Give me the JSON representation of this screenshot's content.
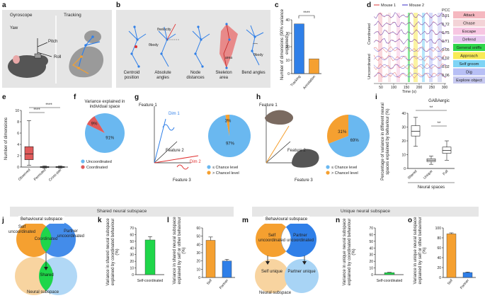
{
  "colors": {
    "blue": "#2f7fe8",
    "orange": "#f5a030",
    "red": "#e05a5a",
    "green": "#1fd64a",
    "lightblue": "#6ab8f0",
    "lightorange": "#f8d4a0",
    "grey": "#e5e5e5"
  },
  "panels": {
    "a": "a",
    "b": "b",
    "c": "c",
    "d": "d",
    "e": "e",
    "f": "f",
    "g": "g",
    "h": "h",
    "i": "i",
    "j": "j",
    "k": "k",
    "l": "l",
    "m": "m",
    "n": "n",
    "o": "o"
  },
  "a": {
    "title1": "Gyroscope",
    "title2": "Tracking",
    "yaw": "Yaw",
    "pitch": "Pitch",
    "roll": "Roll"
  },
  "b": {
    "labels": [
      "Centroid position",
      "Absolute angles",
      "Node distances",
      "Skeleton area",
      "Bend angles"
    ],
    "sym_body": "θbody",
    "sym_velocity": "θvelocity",
    "sym_area": "area",
    "sym_bend": "θbody"
  },
  "c": {
    "ylabel": "Number of dimensions (90% variance explained)",
    "sig": "****",
    "chart_data": {
      "type": "bar",
      "categories": [
        "Tracking",
        "Annotation"
      ],
      "values": [
        37,
        11
      ],
      "ylim": [
        0,
        40
      ],
      "yticks": [
        0,
        10,
        20,
        30,
        40
      ],
      "ylabel": "Number of dimensions (90% variance explained)"
    }
  },
  "d": {
    "legend_m1": "Mouse 1",
    "legend_m2": "Mouse 2",
    "pcc_header": "PCC",
    "pcc": [
      "0.91",
      "0.72",
      "0.75",
      "0.71",
      "0.05",
      "0.02",
      "0.02",
      "0.06"
    ],
    "group_coord": "Coordinated",
    "group_uncoord": "Uncoordinated",
    "xlabel": "Time (s)",
    "xticks": [
      "50",
      "100",
      "150",
      "200",
      "250",
      "300"
    ],
    "behaviours": [
      "Attack",
      "Chase",
      "Escape",
      "Defend",
      "General sniffs",
      "Approach",
      "Self groom",
      "Dig",
      "Explore object"
    ],
    "behaviour_colors": [
      "#f5b8c0",
      "#f3d3d7",
      "#f7c6e2",
      "#e8c9f0",
      "#2fd64a",
      "#f8ea55",
      "#7ed4f5",
      "#b7bff5",
      "#c7c9f0"
    ]
  },
  "e": {
    "ylabel": "Number of dimensions",
    "sig1": "****",
    "sig2": "****",
    "chart_data": {
      "type": "box",
      "categories": [
        "Observed",
        "Permuted",
        "Cross-pair"
      ],
      "ylim": [
        0,
        10
      ],
      "yticks": [
        0,
        2,
        4,
        6,
        8,
        10
      ],
      "boxes": [
        {
          "min": 0.3,
          "q1": 1.3,
          "median": 2.3,
          "q3": 3.6,
          "max": 8.2
        },
        {
          "min": -0.2,
          "q1": -0.1,
          "median": 0,
          "q3": 0.1,
          "max": 0.2
        },
        {
          "min": -0.2,
          "q1": -0.1,
          "median": 0,
          "q3": 0.1,
          "max": 0.2
        }
      ]
    }
  },
  "f": {
    "title": "Variance explained in individual space",
    "legend": [
      "Uncoordinated",
      "Coordinated"
    ],
    "chart_data": {
      "type": "pie",
      "labels": [
        "Uncoordinated",
        "Coordinated"
      ],
      "values": [
        91,
        9
      ],
      "label_text": [
        "91%",
        "9%"
      ]
    }
  },
  "g": {
    "feat1": "Feature 1",
    "feat2": "Feature 2",
    "feat3": "Feature 3",
    "dim1": "Dim 1",
    "dim2": "Dim 2",
    "legend": [
      "≤ Chance level",
      "> Chancel level"
    ],
    "chart_data": {
      "type": "pie",
      "labels": [
        "≤ Chance level",
        "> Chancel level"
      ],
      "values": [
        97,
        3
      ],
      "label_text": [
        "97%",
        "3%"
      ]
    }
  },
  "h": {
    "feat1": "Feature 1",
    "feat2": "Feature 2",
    "feat3": "Feature 3",
    "legend": [
      "≤ Chance level",
      "> Chancel level"
    ],
    "chart_data": {
      "type": "pie",
      "labels": [
        "≤ Chance level",
        "> Chancel level"
      ],
      "values": [
        69,
        31
      ],
      "label_text": [
        "69%",
        "31%"
      ]
    }
  },
  "i": {
    "title": "GABAergic",
    "ylabel": "Percentage of variance in different neural spaces explained by behaviour (%)",
    "xlabel": "Neural spaces",
    "sig1": "**",
    "sig2": "**",
    "chart_data": {
      "type": "box",
      "categories": [
        "Shared",
        "Unique",
        "Full"
      ],
      "ylim": [
        0,
        40
      ],
      "yticks": [
        0,
        10,
        20,
        30,
        40
      ],
      "boxes": [
        {
          "min": 16,
          "q1": 23.5,
          "median": 27,
          "q3": 31,
          "max": 37
        },
        {
          "min": 3,
          "q1": 5,
          "median": 6,
          "q3": 7,
          "max": 9
        },
        {
          "min": 6,
          "q1": 11,
          "median": 13,
          "q3": 15.5,
          "max": 20
        }
      ]
    }
  },
  "banner_shared": "Shared neural subspace",
  "banner_unique": "Unique neural subspace",
  "j": {
    "top": "Behavioural subspace",
    "self": "Self uncoordinated",
    "coord": "Coordinated",
    "partner": "Partner uncoordinated",
    "shared": "Shared",
    "bottom": "Neural subspace"
  },
  "k": {
    "ylabel": "Variance in shared neural subspace explained by coordinated behaviour (%)",
    "xlabel": "Self-coordinated",
    "chart_data": {
      "type": "bar",
      "categories": [
        "Self-coordinated"
      ],
      "values": [
        52
      ],
      "errors": [
        5
      ],
      "ylim": [
        0,
        70
      ],
      "yticks": [
        0,
        10,
        20,
        30,
        40,
        50,
        60,
        70
      ]
    }
  },
  "l": {
    "ylabel": "Variance in shared neural subspace explained by self or other behaviour (%)",
    "chart_data": {
      "type": "bar",
      "categories": [
        "Self",
        "Partner"
      ],
      "values": [
        45,
        20
      ],
      "errors": [
        4,
        2
      ],
      "ylim": [
        0,
        60
      ],
      "yticks": [
        0,
        10,
        20,
        30,
        40,
        50,
        60
      ]
    }
  },
  "m": {
    "top": "Behavioural subspace",
    "self": "Self uncoordinated",
    "partner": "Partner uncoordinated",
    "self_unique": "Self unique",
    "partner_unique": "Partner unique",
    "bottom": "Neural subspace"
  },
  "n": {
    "ylabel": "Variance in unique neural subspace explained by coordinated behaviour (%)",
    "xlabel": "Self-coordinated",
    "chart_data": {
      "type": "bar",
      "categories": [
        "Self-coordinated"
      ],
      "values": [
        3
      ],
      "errors": [
        0.5
      ],
      "ylim": [
        0,
        70
      ],
      "yticks": [
        0,
        10,
        20,
        30,
        40,
        50,
        60,
        70
      ]
    }
  },
  "o": {
    "ylabel": "Variance in unique neural subspace explained by self or other behaviour (%)",
    "chart_data": {
      "type": "bar",
      "categories": [
        "Self",
        "Partner"
      ],
      "values": [
        88,
        10
      ],
      "errors": [
        2,
        1
      ],
      "ylim": [
        0,
        100
      ],
      "yticks": [
        0,
        20,
        40,
        60,
        80,
        100
      ]
    }
  }
}
